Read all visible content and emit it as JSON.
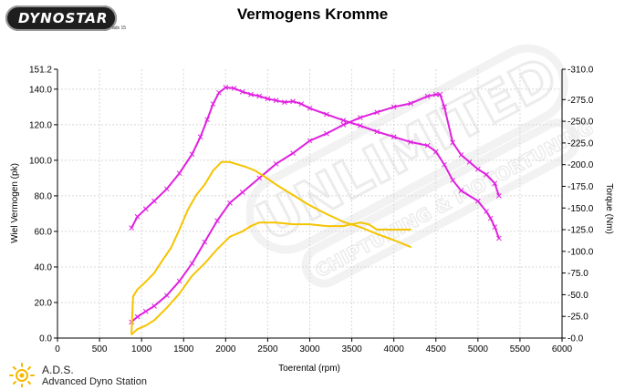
{
  "logo": {
    "text": "DYNOSTAR",
    "sub": "ads 15"
  },
  "footer": {
    "name": "A.D.S.",
    "description": "Advanced Dyno Station"
  },
  "watermark": {
    "line1": "UNLIMITED",
    "line2": "CHIPTUNING & MOTORTUNING"
  },
  "chart_data": {
    "type": "line",
    "title": "Vermogens Kromme",
    "xlabel": "Toerental (rpm)",
    "ylabel": "Wiel Vermogen (pk)",
    "y2label": "Torque (Nm)",
    "xlim": [
      0,
      6000
    ],
    "ylim": [
      0,
      151.2
    ],
    "y2lim": [
      0,
      -310
    ],
    "grid": true,
    "x_ticks": [
      "0",
      "500",
      "1000",
      "1500",
      "2000",
      "2500",
      "3000",
      "3500",
      "4000",
      "4500",
      "5000",
      "5500",
      "6000"
    ],
    "y_ticks": [
      "0.0",
      "20.0",
      "40.0",
      "60.0",
      "80.0",
      "100.0",
      "120.0",
      "140.0",
      "151.2"
    ],
    "y_tick_values": [
      0,
      20,
      40,
      60,
      80,
      100,
      120,
      140,
      151.2
    ],
    "y2_ticks": [
      "-0.0",
      "-25.0",
      "-50.0",
      "-75.0",
      "-100.0",
      "-125.0",
      "-150.0",
      "-175.0",
      "-200.0",
      "-225.0",
      "-250.0",
      "-275.0",
      "-310.0"
    ],
    "y2_tick_values": [
      0,
      25,
      50,
      75,
      100,
      125,
      150,
      175,
      200,
      225,
      250,
      275,
      310
    ],
    "colors": {
      "tuned": "#e020e0",
      "stock": "#f5c400"
    },
    "series": [
      {
        "color": "#e020e0",
        "axis": "right",
        "marker": "x",
        "x": [
          880,
          950,
          1050,
          1150,
          1300,
          1450,
          1600,
          1700,
          1780,
          1850,
          1920,
          2000,
          2100,
          2200,
          2300,
          2400,
          2500,
          2600,
          2700,
          2800,
          2900,
          3000,
          3200,
          3400,
          3600,
          3800,
          4000,
          4200,
          4400,
          4500,
          4600,
          4700,
          4800,
          5000,
          5100,
          5150,
          5200,
          5250
        ],
        "y": [
          127,
          140,
          149,
          158,
          172,
          190,
          212,
          232,
          252,
          270,
          283,
          289,
          288,
          284,
          281,
          279,
          276,
          274,
          272,
          273,
          270,
          265,
          258,
          251,
          245,
          238,
          232,
          226,
          222,
          215,
          200,
          182,
          170,
          158,
          146,
          138,
          128,
          115
        ]
      },
      {
        "color": "#e020e0",
        "axis": "left",
        "marker": "x",
        "x": [
          880,
          950,
          1050,
          1150,
          1300,
          1450,
          1600,
          1750,
          1900,
          2050,
          2200,
          2400,
          2600,
          2800,
          3000,
          3200,
          3400,
          3600,
          3800,
          4000,
          4200,
          4400,
          4500,
          4550,
          4600,
          4700,
          4800,
          4900,
          5000,
          5100,
          5200,
          5250
        ],
        "y": [
          9,
          12,
          15,
          18,
          24,
          32,
          42,
          54,
          66,
          76,
          82,
          90,
          98,
          104,
          111,
          115,
          120,
          124,
          127,
          130,
          132,
          136,
          137,
          137,
          130,
          110,
          103,
          99,
          95,
          92,
          87,
          80
        ]
      },
      {
        "color": "#f5c400",
        "axis": "right",
        "marker": "none",
        "x": [
          880,
          900,
          950,
          1050,
          1150,
          1250,
          1350,
          1450,
          1550,
          1650,
          1750,
          1850,
          1950,
          2050,
          2150,
          2250,
          2350,
          2450,
          2600,
          2800,
          3000,
          3200,
          3400,
          3600,
          3800,
          4000,
          4200
        ],
        "y": [
          5,
          48,
          56,
          65,
          75,
          90,
          104,
          125,
          148,
          165,
          177,
          193,
          203,
          203,
          200,
          197,
          193,
          187,
          177,
          165,
          153,
          143,
          134,
          128,
          120,
          113,
          105
        ]
      },
      {
        "color": "#f5c400",
        "axis": "left",
        "marker": "none",
        "x": [
          880,
          950,
          1050,
          1150,
          1300,
          1450,
          1600,
          1750,
          1900,
          2050,
          2200,
          2300,
          2400,
          2600,
          2800,
          3000,
          3200,
          3400,
          3600,
          3700,
          3800,
          3900,
          4000,
          4100,
          4200
        ],
        "y": [
          2,
          5,
          7,
          10,
          17,
          25,
          35,
          42,
          50,
          57,
          60,
          63,
          65,
          65,
          64,
          64,
          63,
          63,
          65,
          64,
          61,
          61,
          61,
          61,
          61
        ]
      }
    ]
  }
}
